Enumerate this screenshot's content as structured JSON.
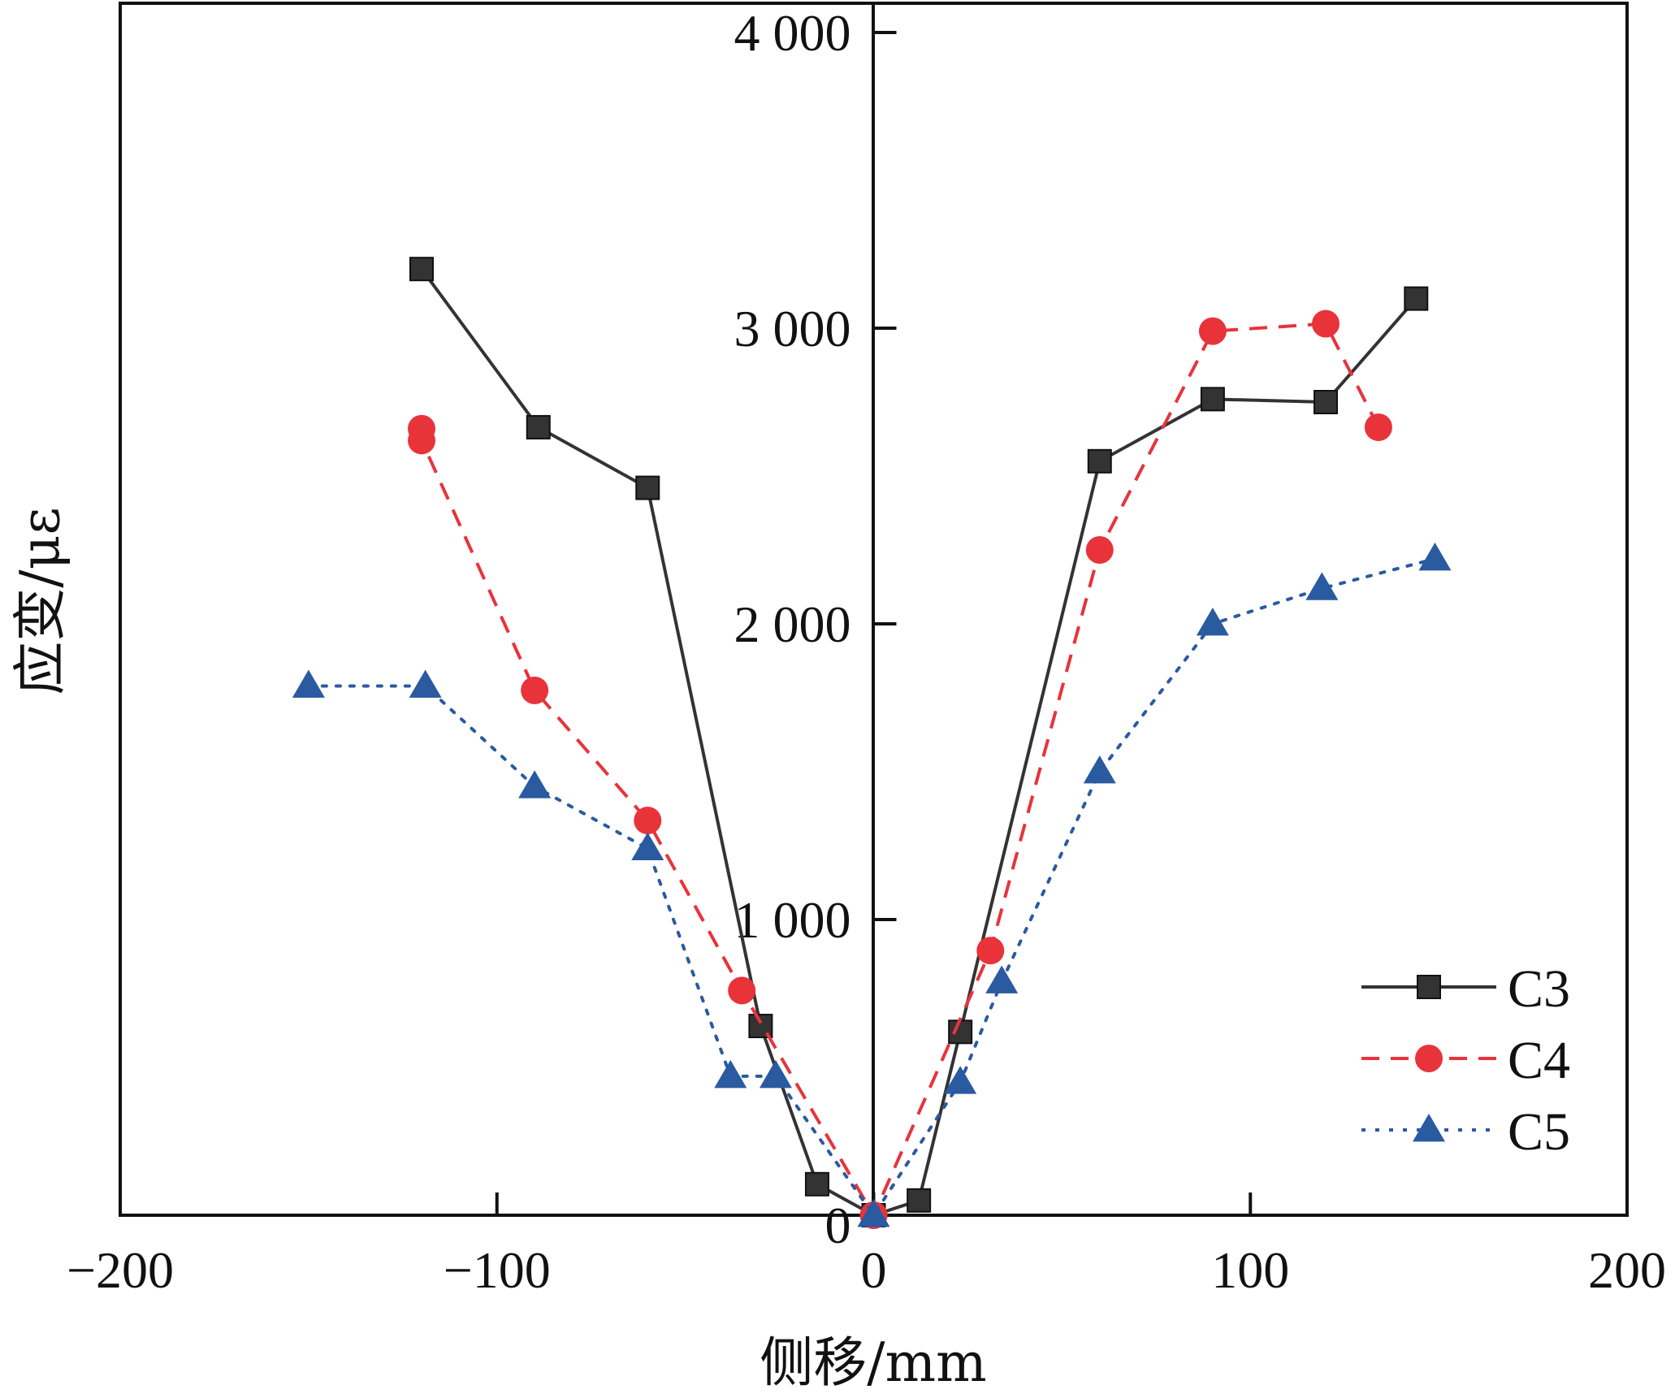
{
  "chart_data": {
    "type": "line",
    "title": "",
    "xlabel": "侧移/mm",
    "ylabel": "应变/με",
    "xlim": [
      -200,
      200
    ],
    "ylim": [
      0,
      4000
    ],
    "xticks": [
      -200,
      -100,
      0,
      100,
      200
    ],
    "xtick_labels": [
      "−200",
      "−100",
      "0",
      "100",
      "200"
    ],
    "yticks": [
      1000,
      2000,
      3000,
      4000
    ],
    "ytick_labels": [
      "1 000",
      "2 000",
      "3 000",
      "4 000"
    ],
    "origin_label": "0",
    "grid": false,
    "legend_position": "bottom-right",
    "series": [
      {
        "name": "C3",
        "color": "#333333",
        "marker": "square",
        "line": "solid",
        "points": [
          [
            -120,
            3200
          ],
          [
            -89,
            2665
          ],
          [
            -60,
            2460
          ],
          [
            -30,
            640
          ],
          [
            -15,
            105
          ],
          [
            0,
            0
          ],
          [
            12,
            50
          ],
          [
            23,
            620
          ],
          [
            60,
            2550
          ],
          [
            90,
            2760
          ],
          [
            120,
            2750
          ],
          [
            144,
            3100
          ]
        ]
      },
      {
        "name": "C4",
        "color": "#e8333b",
        "marker": "circle",
        "line": "dashed",
        "points": [
          [
            -120,
            2660
          ],
          [
            -120,
            2620
          ],
          [
            -90,
            1775
          ],
          [
            -60,
            1335
          ],
          [
            -35,
            760
          ],
          [
            0,
            0
          ],
          [
            31,
            895
          ],
          [
            60,
            2250
          ],
          [
            90,
            2990
          ],
          [
            120,
            3015
          ],
          [
            134,
            2665
          ]
        ]
      },
      {
        "name": "C5",
        "color": "#2a5aa0",
        "marker": "triangle",
        "line": "dotted",
        "points": [
          [
            -150,
            1790
          ],
          [
            -119,
            1790
          ],
          [
            -90,
            1450
          ],
          [
            -60,
            1240
          ],
          [
            -38,
            470
          ],
          [
            -26,
            470
          ],
          [
            0,
            0
          ],
          [
            23,
            450
          ],
          [
            34,
            790
          ],
          [
            60,
            1500
          ],
          [
            90,
            2000
          ],
          [
            119,
            2120
          ],
          [
            149,
            2220
          ]
        ]
      }
    ]
  }
}
